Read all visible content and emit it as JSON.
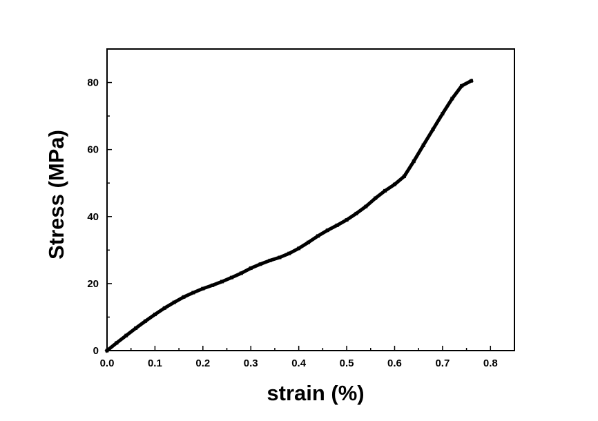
{
  "chart_data": {
    "type": "line",
    "title": "",
    "xlabel": "strain (%)",
    "ylabel": "Stress (MPa)",
    "xlim": [
      0.0,
      0.85
    ],
    "ylim": [
      0,
      90
    ],
    "x_ticks": [
      0.0,
      0.1,
      0.2,
      0.3,
      0.4,
      0.5,
      0.6,
      0.7,
      0.8
    ],
    "x_tick_labels": [
      "0.0",
      "0.1",
      "0.2",
      "0.3",
      "0.4",
      "0.5",
      "0.6",
      "0.7",
      "0.8"
    ],
    "y_ticks": [
      0,
      20,
      40,
      60,
      80
    ],
    "y_tick_labels": [
      "0",
      "20",
      "40",
      "60",
      "80"
    ],
    "grid": false,
    "legend": "none",
    "line_color": "#000000",
    "series": [
      {
        "x": [
          0.0,
          0.02,
          0.04,
          0.06,
          0.08,
          0.1,
          0.12,
          0.14,
          0.16,
          0.18,
          0.2,
          0.22,
          0.24,
          0.26,
          0.28,
          0.3,
          0.32,
          0.34,
          0.36,
          0.38,
          0.4,
          0.42,
          0.44,
          0.46,
          0.48,
          0.5,
          0.52,
          0.54,
          0.56,
          0.58,
          0.6,
          0.62,
          0.64,
          0.66,
          0.68,
          0.7,
          0.72,
          0.74,
          0.76
        ],
        "y": [
          0.0,
          2.3,
          4.5,
          6.7,
          8.8,
          10.8,
          12.7,
          14.4,
          16.0,
          17.3,
          18.5,
          19.5,
          20.6,
          21.8,
          23.1,
          24.6,
          25.8,
          26.9,
          27.8,
          29.0,
          30.5,
          32.3,
          34.2,
          35.9,
          37.4,
          39.0,
          40.9,
          43.0,
          45.5,
          47.7,
          49.6,
          52.0,
          56.5,
          61.3,
          66.0,
          70.7,
          75.2,
          79.0,
          80.5
        ]
      }
    ]
  }
}
